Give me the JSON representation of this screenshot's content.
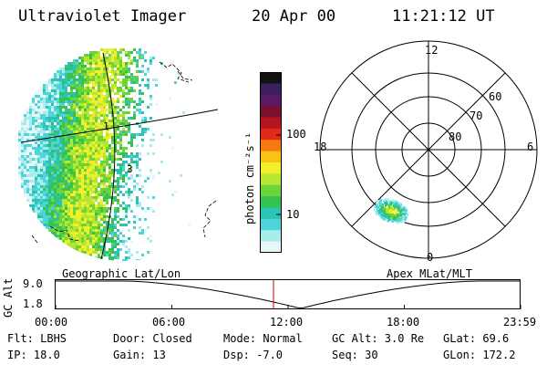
{
  "header": {
    "title": "Ultraviolet Imager",
    "date": "20 Apr 00",
    "time": "11:21:12 UT"
  },
  "imager": {
    "geo_label": "Geographic Lat/Lon",
    "markers": [
      "1",
      "3"
    ]
  },
  "colorbar": {
    "unit_label": "photon cm⁻²s⁻¹",
    "ticks": [
      "100",
      "10"
    ],
    "colors": [
      "#111111",
      "#3a1f5a",
      "#5b1a66",
      "#7a1030",
      "#b3161f",
      "#e12b1a",
      "#f47a12",
      "#f8c314",
      "#f1ee2c",
      "#b6e630",
      "#6bd43a",
      "#35c24e",
      "#2cc3b6",
      "#4dd5d9",
      "#a9ecec",
      "#e6f7f7"
    ]
  },
  "polar": {
    "mlt_labels": [
      "12",
      "18",
      "6",
      "0"
    ],
    "lat_labels": [
      "60",
      "70",
      "80"
    ],
    "apex_label": "Apex MLat/MLT"
  },
  "timeline": {
    "ylabel": "GC Alt",
    "yticks": [
      "9.0",
      "1.8"
    ],
    "xticks": [
      "00:00",
      "06:00",
      "12:00",
      "18:00",
      "23:59"
    ],
    "current_marker_color": "#cc0000"
  },
  "footer": {
    "flt": "Flt: LBHS",
    "door": "Door: Closed",
    "mode": "Mode: Normal",
    "gcalt": "GC Alt: 3.0 Re",
    "glat": "GLat:  69.6",
    "ip": "IP: 18.0",
    "gain": "Gain: 13",
    "dsp": "Dsp:   -7.0",
    "seq": "Seq: 30",
    "glon": "GLon: 172.2"
  }
}
